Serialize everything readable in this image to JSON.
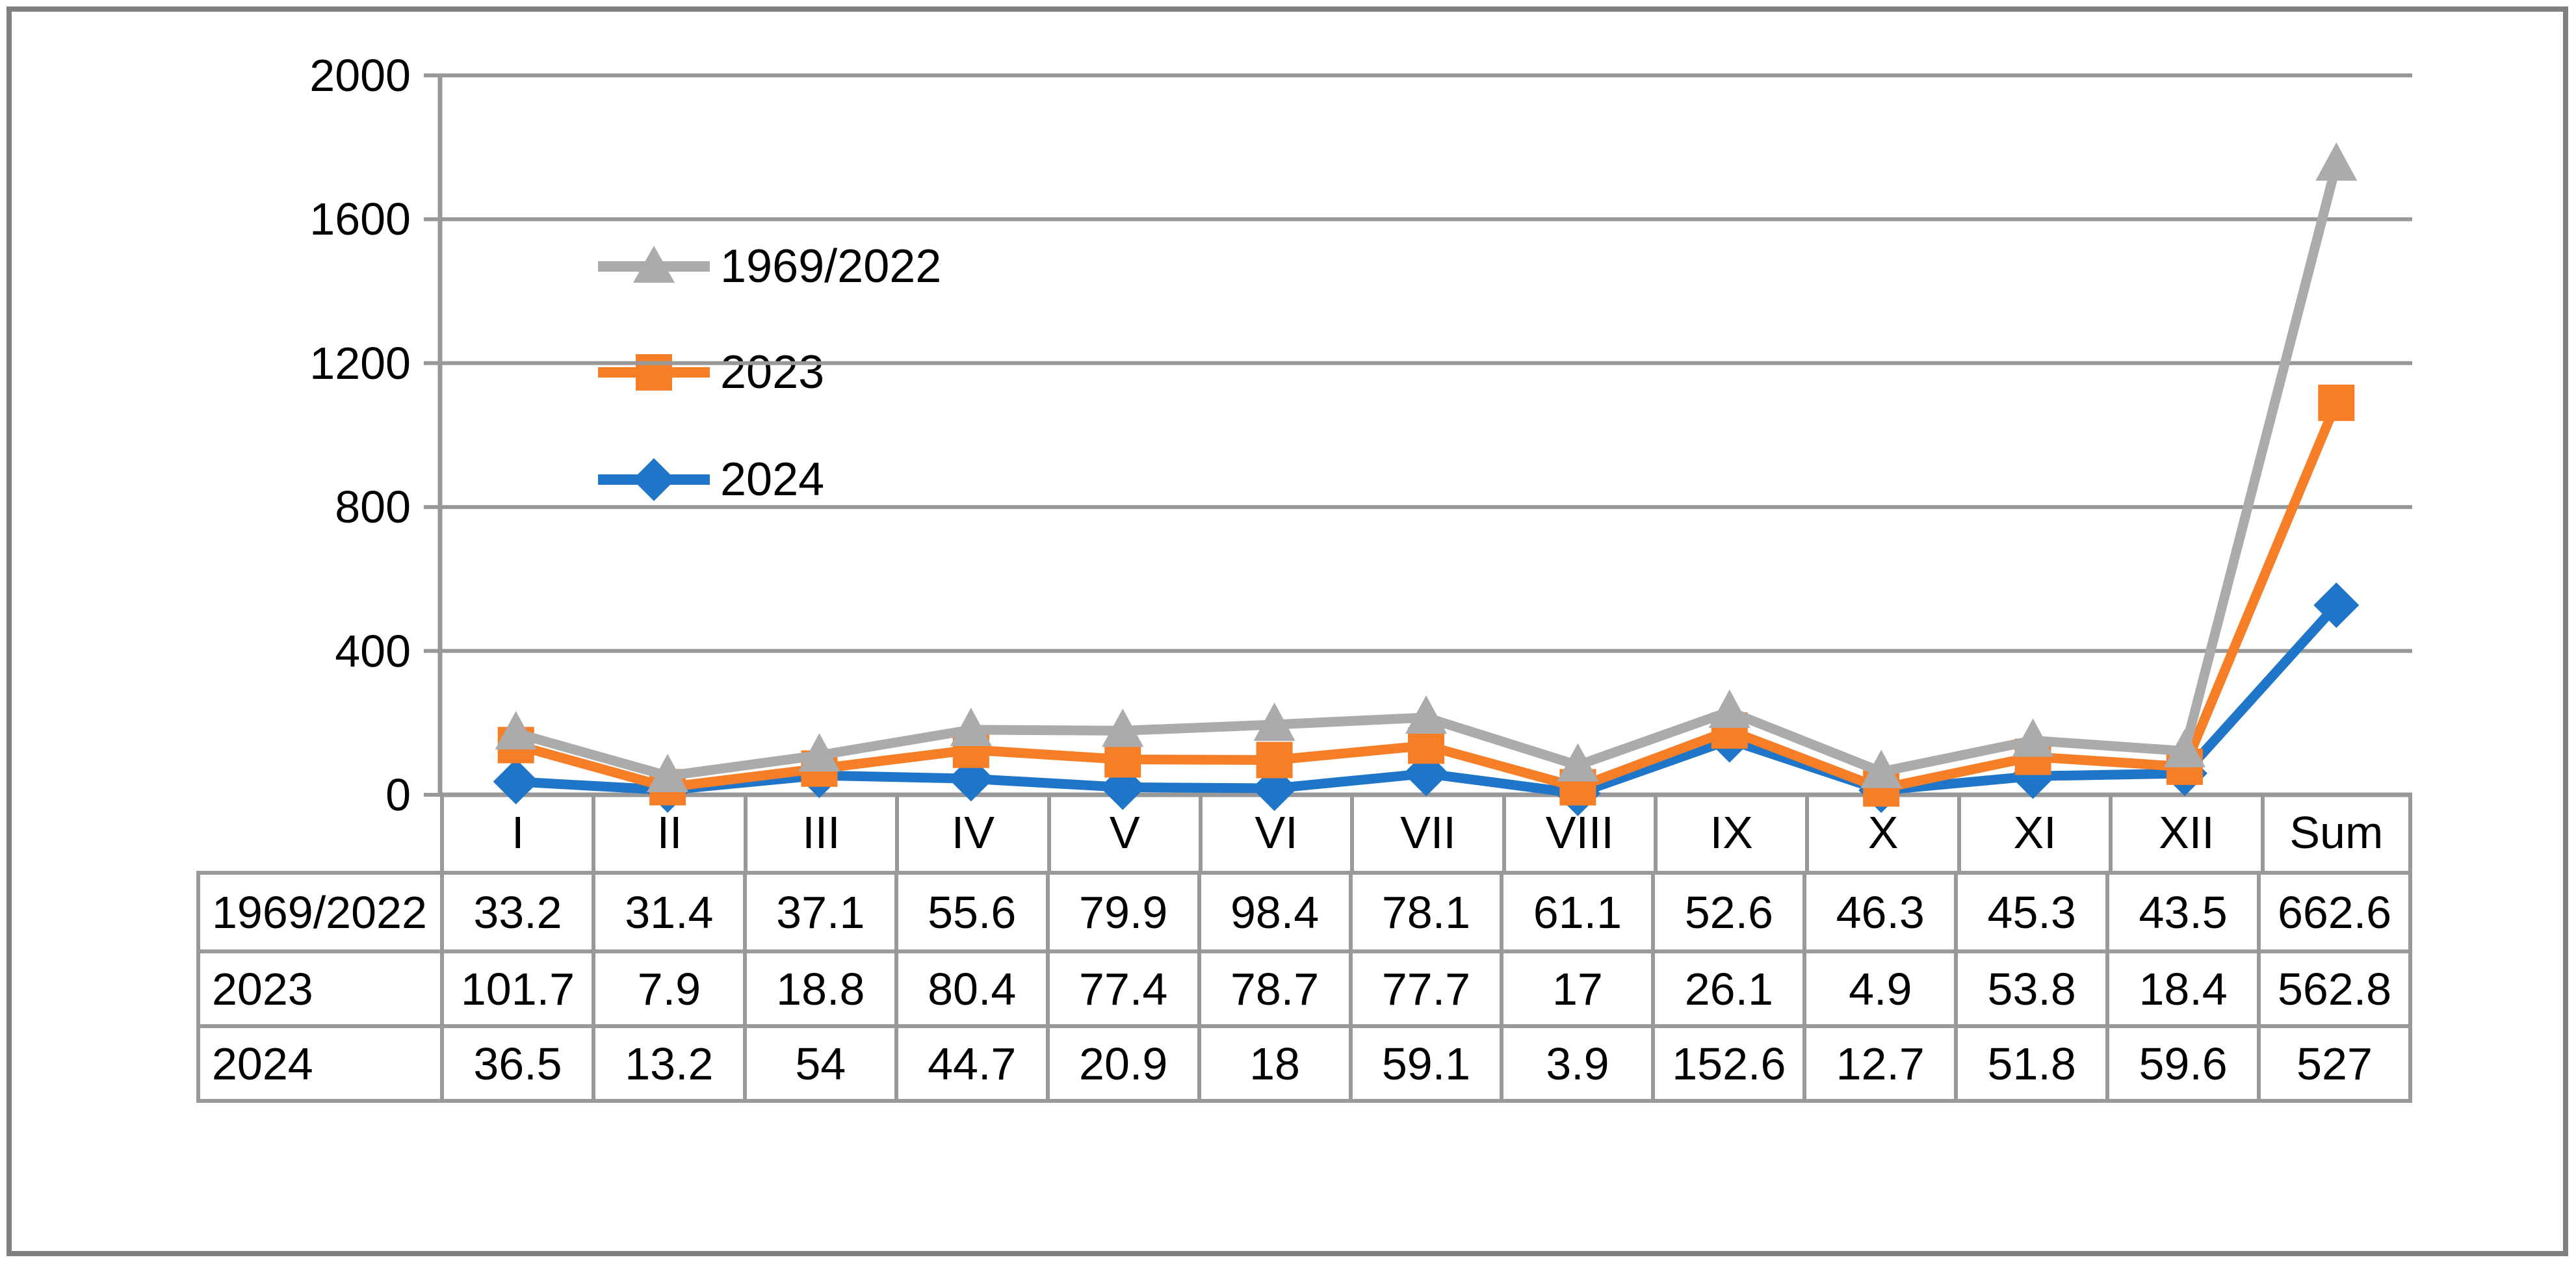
{
  "chart_data": {
    "type": "line",
    "stacked": true,
    "title": "",
    "xlabel": "",
    "ylabel": "",
    "categories": [
      "I",
      "II",
      "III",
      "IV",
      "V",
      "VI",
      "VII",
      "VIII",
      "IX",
      "X",
      "XI",
      "XII",
      "Sum"
    ],
    "series": [
      {
        "name": "1969/2022",
        "marker": "triangle",
        "color": "#ABABAB",
        "values": [
          33.2,
          31.4,
          37.1,
          55.6,
          79.9,
          98.4,
          78.1,
          61.1,
          52.6,
          46.3,
          45.3,
          43.5,
          662.6
        ]
      },
      {
        "name": "2023",
        "marker": "square",
        "color": "#F57E27",
        "values": [
          101.7,
          7.9,
          18.8,
          80.4,
          77.4,
          78.7,
          77.7,
          17,
          26.1,
          4.9,
          53.8,
          18.4,
          562.8
        ]
      },
      {
        "name": "2024",
        "marker": "diamond",
        "color": "#1F76C8",
        "values": [
          36.5,
          13.2,
          54,
          44.7,
          20.9,
          18,
          59.1,
          3.9,
          152.6,
          12.7,
          51.8,
          59.6,
          527
        ]
      }
    ],
    "stack_bottom_to_top": [
      2,
      1,
      0
    ],
    "ylim": [
      0,
      2000
    ],
    "y_ticks": [
      0,
      400,
      800,
      1200,
      1600,
      2000
    ],
    "grid": "horizontal",
    "legend_position": "inside-top-left",
    "legend_order": [
      "1969/2022",
      "2023",
      "2024"
    ],
    "data_table_shown": true
  },
  "colors": {
    "grid": "#989898",
    "axis": "#989898",
    "table_border": "#999999",
    "frame": "#7F7F7F",
    "text": "#000000",
    "background": "#FFFFFF"
  }
}
